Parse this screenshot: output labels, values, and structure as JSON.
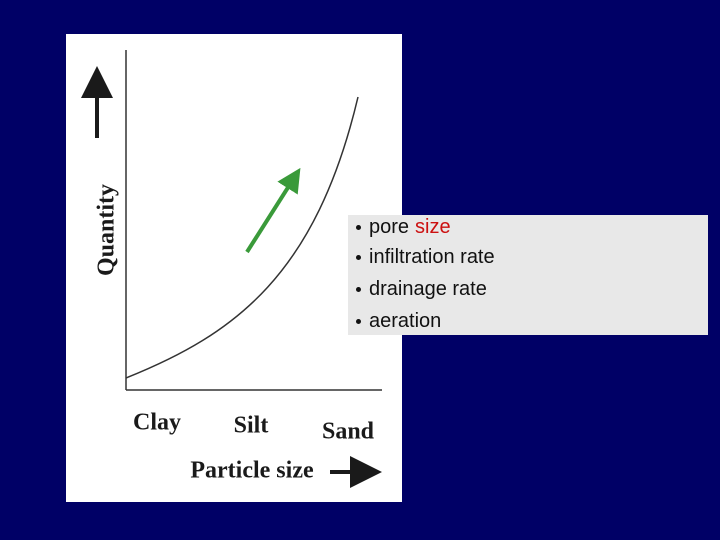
{
  "diagram": {
    "y_axis_label": "Quantity",
    "x_categories": [
      "Clay",
      "Silt",
      "Sand"
    ],
    "x_axis_label": "Particle size"
  },
  "list": {
    "items": [
      {
        "text": "pore",
        "highlight": "size"
      },
      {
        "text": "infiltration rate"
      },
      {
        "text": "drainage rate"
      },
      {
        "text": "aeration"
      }
    ]
  }
}
